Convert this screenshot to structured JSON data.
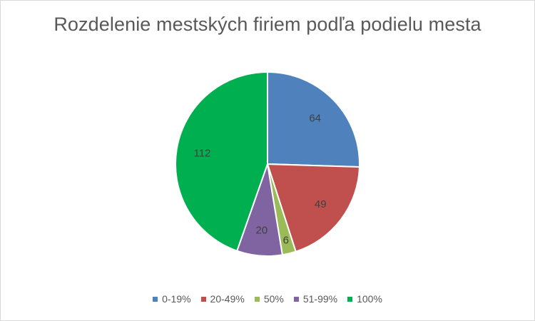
{
  "chart_data": {
    "type": "pie",
    "title": "Rozdelenie mestských firiem podľa podielu mesta",
    "categories": [
      "0-19%",
      "20-49%",
      "50%",
      "51-99%",
      "100%"
    ],
    "values": [
      64,
      49,
      6,
      20,
      112
    ],
    "colors": [
      "#4f81bd",
      "#c0504d",
      "#9bbb59",
      "#8064a2",
      "#00b050"
    ],
    "data_labels": [
      "64",
      "49",
      "6",
      "20",
      "112"
    ],
    "legend_position": "bottom",
    "start_angle_deg": 0,
    "direction": "clockwise"
  }
}
